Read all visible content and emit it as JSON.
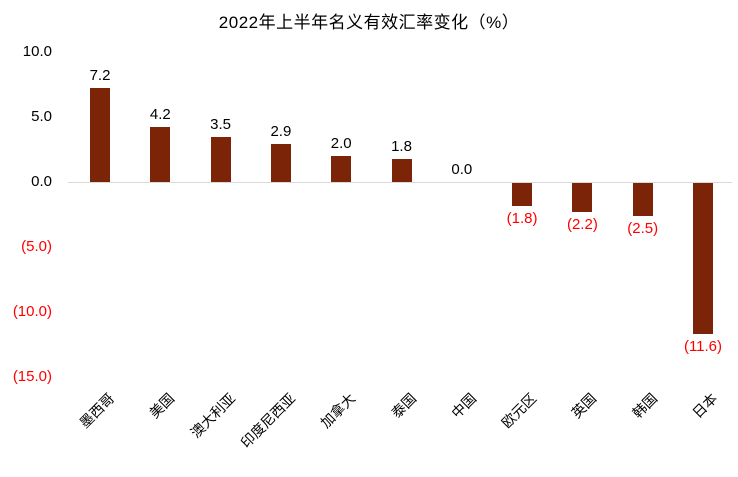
{
  "chart_data": {
    "type": "bar",
    "title": "2022年上半年名义有效汇率变化（%）",
    "categories": [
      "墨西哥",
      "美国",
      "澳大利亚",
      "印度尼西亚",
      "加拿大",
      "泰国",
      "中国",
      "欧元区",
      "英国",
      "韩国",
      "日本"
    ],
    "values": [
      7.2,
      4.2,
      3.5,
      2.9,
      2.0,
      1.8,
      0.0,
      -1.8,
      -2.2,
      -2.5,
      -11.6
    ],
    "value_labels": [
      "7.2",
      "4.2",
      "3.5",
      "2.9",
      "2.0",
      "1.8",
      "0.0",
      "(1.8)",
      "(2.2)",
      "(2.5)",
      "(11.6)"
    ],
    "xlabel": "",
    "ylabel": "",
    "ylim": [
      -15,
      10
    ],
    "grid": false,
    "legend": "none",
    "yticks": [
      {
        "label": "10.0",
        "value": 10
      },
      {
        "label": "5.0",
        "value": 5
      },
      {
        "label": "0.0",
        "value": 0
      },
      {
        "label": "(5.0)",
        "value": -5
      },
      {
        "label": "(10.0)",
        "value": -10
      },
      {
        "label": "(15.0)",
        "value": -15
      }
    ],
    "colors": {
      "bar_fill": "#7B2408",
      "positive_label": "#000000",
      "negative_label": "#FF0000",
      "axis_line": "#D9D9D9",
      "title": "#000000",
      "background": "#FFFFFF"
    }
  }
}
